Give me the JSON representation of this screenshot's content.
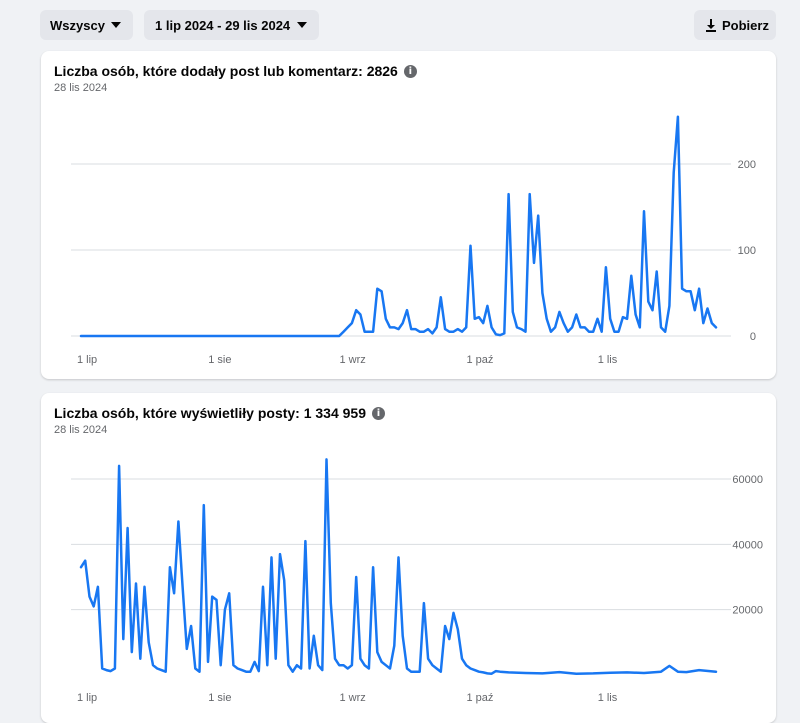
{
  "toolbar": {
    "audience_label": "Wszyscy",
    "date_range_label": "1 lip 2024 - 29 lis 2024",
    "download_label": "Pobierz"
  },
  "colors": {
    "line": "#1877f2",
    "grid": "#dadde1",
    "axis_text": "#65676b"
  },
  "cards": [
    {
      "title": "Liczba osób, które dodały post lub komentarz: 2826",
      "date": "28 lis 2024"
    },
    {
      "title": "Liczba osób, które wyświetliły posty: 1 334 959",
      "date": "28 lis 2024"
    }
  ],
  "chart_data": [
    {
      "type": "line",
      "title": "Liczba osób, które dodały post lub komentarz: 2826",
      "subtitle": "28 lis 2024",
      "x_ticks": [
        "1 lip",
        "1 sie",
        "1 wrz",
        "1 paź",
        "1 lis"
      ],
      "y_ticks": [
        0,
        100,
        200
      ],
      "ylim": [
        0,
        255
      ],
      "x_range": [
        "2024-07-01",
        "2024-11-28"
      ],
      "grid": true,
      "series": [
        {
          "x": [
            "2024-07-01",
            "2024-08-31",
            "2024-09-01",
            "2024-09-02",
            "2024-09-03",
            "2024-09-04",
            "2024-09-05",
            "2024-09-06",
            "2024-09-07",
            "2024-09-08",
            "2024-09-09",
            "2024-09-10",
            "2024-09-11",
            "2024-09-12",
            "2024-09-13",
            "2024-09-14",
            "2024-09-15",
            "2024-09-16",
            "2024-09-17",
            "2024-09-18",
            "2024-09-19",
            "2024-09-20",
            "2024-09-21",
            "2024-09-22",
            "2024-09-23",
            "2024-09-24",
            "2024-09-25",
            "2024-09-26",
            "2024-09-27",
            "2024-09-28",
            "2024-09-29",
            "2024-09-30",
            "2024-10-01",
            "2024-10-02",
            "2024-10-03",
            "2024-10-04",
            "2024-10-05",
            "2024-10-06",
            "2024-10-07",
            "2024-10-08",
            "2024-10-09",
            "2024-10-10",
            "2024-10-11",
            "2024-10-12",
            "2024-10-13",
            "2024-10-14",
            "2024-10-15",
            "2024-10-16",
            "2024-10-17",
            "2024-10-18",
            "2024-10-19",
            "2024-10-20",
            "2024-10-21",
            "2024-10-22",
            "2024-10-23",
            "2024-10-24",
            "2024-10-25",
            "2024-10-26",
            "2024-10-27",
            "2024-10-28",
            "2024-10-29",
            "2024-10-30",
            "2024-10-31",
            "2024-11-01",
            "2024-11-02",
            "2024-11-03",
            "2024-11-04",
            "2024-11-05",
            "2024-11-06",
            "2024-11-07",
            "2024-11-08",
            "2024-11-09",
            "2024-11-10",
            "2024-11-11",
            "2024-11-12",
            "2024-11-13",
            "2024-11-14",
            "2024-11-15",
            "2024-11-16",
            "2024-11-17",
            "2024-11-18",
            "2024-11-19",
            "2024-11-20",
            "2024-11-21",
            "2024-11-22",
            "2024-11-23",
            "2024-11-24",
            "2024-11-25",
            "2024-11-26",
            "2024-11-27",
            "2024-11-28"
          ],
          "y": [
            0,
            0,
            5,
            10,
            15,
            30,
            25,
            5,
            5,
            5,
            55,
            52,
            20,
            10,
            10,
            8,
            15,
            30,
            8,
            8,
            5,
            5,
            8,
            3,
            10,
            45,
            8,
            5,
            5,
            8,
            5,
            10,
            105,
            20,
            22,
            15,
            35,
            10,
            2,
            1,
            3,
            165,
            28,
            10,
            8,
            5,
            165,
            85,
            140,
            50,
            20,
            5,
            10,
            28,
            15,
            5,
            10,
            25,
            10,
            10,
            5,
            5,
            20,
            5,
            80,
            20,
            5,
            5,
            22,
            20,
            70,
            25,
            10,
            145,
            40,
            30,
            75,
            10,
            5,
            35,
            190,
            255,
            55,
            52,
            52,
            30,
            55,
            15,
            32,
            15,
            10
          ]
        }
      ]
    },
    {
      "type": "line",
      "title": "Liczba osób, które wyświetliły posty: 1 334 959",
      "subtitle": "28 lis 2024",
      "x_ticks": [
        "1 lip",
        "1 sie",
        "1 wrz",
        "1 paź",
        "1 lis"
      ],
      "y_ticks": [
        20000,
        40000,
        60000
      ],
      "ylim": [
        0,
        66000
      ],
      "x_range": [
        "2024-07-01",
        "2024-11-28"
      ],
      "grid": true,
      "series": [
        {
          "x": [
            "2024-07-01",
            "2024-07-02",
            "2024-07-03",
            "2024-07-04",
            "2024-07-05",
            "2024-07-06",
            "2024-07-07",
            "2024-07-08",
            "2024-07-09",
            "2024-07-10",
            "2024-07-11",
            "2024-07-12",
            "2024-07-13",
            "2024-07-14",
            "2024-07-15",
            "2024-07-16",
            "2024-07-17",
            "2024-07-18",
            "2024-07-19",
            "2024-07-20",
            "2024-07-21",
            "2024-07-22",
            "2024-07-23",
            "2024-07-24",
            "2024-07-25",
            "2024-07-26",
            "2024-07-27",
            "2024-07-28",
            "2024-07-29",
            "2024-07-30",
            "2024-07-31",
            "2024-08-01",
            "2024-08-02",
            "2024-08-03",
            "2024-08-04",
            "2024-08-05",
            "2024-08-06",
            "2024-08-07",
            "2024-08-08",
            "2024-08-09",
            "2024-08-10",
            "2024-08-11",
            "2024-08-12",
            "2024-08-13",
            "2024-08-14",
            "2024-08-15",
            "2024-08-16",
            "2024-08-17",
            "2024-08-18",
            "2024-08-19",
            "2024-08-20",
            "2024-08-21",
            "2024-08-22",
            "2024-08-23",
            "2024-08-24",
            "2024-08-25",
            "2024-08-26",
            "2024-08-27",
            "2024-08-28",
            "2024-08-29",
            "2024-08-30",
            "2024-08-31",
            "2024-09-01",
            "2024-09-02",
            "2024-09-03",
            "2024-09-04",
            "2024-09-05",
            "2024-09-06",
            "2024-09-07",
            "2024-09-08",
            "2024-09-09",
            "2024-09-10",
            "2024-09-11",
            "2024-09-12",
            "2024-09-13",
            "2024-09-14",
            "2024-09-15",
            "2024-09-16",
            "2024-09-17",
            "2024-09-18",
            "2024-09-19",
            "2024-09-20",
            "2024-09-21",
            "2024-09-22",
            "2024-09-23",
            "2024-09-24",
            "2024-09-25",
            "2024-09-26",
            "2024-09-27",
            "2024-09-28",
            "2024-09-29",
            "2024-09-30",
            "2024-10-01",
            "2024-10-02",
            "2024-10-03",
            "2024-10-04",
            "2024-10-05",
            "2024-10-06",
            "2024-10-07",
            "2024-10-08",
            "2024-10-10",
            "2024-10-14",
            "2024-10-18",
            "2024-10-22",
            "2024-10-26",
            "2024-10-30",
            "2024-11-03",
            "2024-11-07",
            "2024-11-11",
            "2024-11-15",
            "2024-11-17",
            "2024-11-19",
            "2024-11-21",
            "2024-11-24",
            "2024-11-28"
          ],
          "y": [
            33000,
            35000,
            24000,
            21000,
            27000,
            2000,
            1500,
            1200,
            2000,
            64000,
            11000,
            45000,
            7000,
            28000,
            5000,
            27000,
            10000,
            3000,
            2000,
            1500,
            1000,
            33000,
            25000,
            47000,
            27000,
            8000,
            15000,
            2000,
            1000,
            52000,
            4000,
            24000,
            23000,
            3000,
            20000,
            25000,
            3000,
            2000,
            1500,
            1000,
            1000,
            4000,
            1200,
            27000,
            3000,
            36000,
            5000,
            37000,
            29000,
            3000,
            1000,
            3000,
            2000,
            41000,
            2000,
            12000,
            3000,
            1500,
            66000,
            22000,
            5000,
            3000,
            3000,
            2000,
            3000,
            30000,
            5000,
            3000,
            2000,
            33000,
            7000,
            4000,
            3000,
            2000,
            9000,
            36000,
            12000,
            2000,
            1000,
            1000,
            1000,
            22000,
            5000,
            3000,
            2000,
            1000,
            15000,
            11000,
            19000,
            14000,
            5000,
            3000,
            2000,
            1500,
            1000,
            800,
            500,
            400,
            1200,
            1000,
            800,
            600,
            500,
            900,
            400,
            500,
            700,
            800,
            600,
            1000,
            2800,
            1000,
            900,
            1500,
            1000
          ]
        }
      ]
    }
  ]
}
